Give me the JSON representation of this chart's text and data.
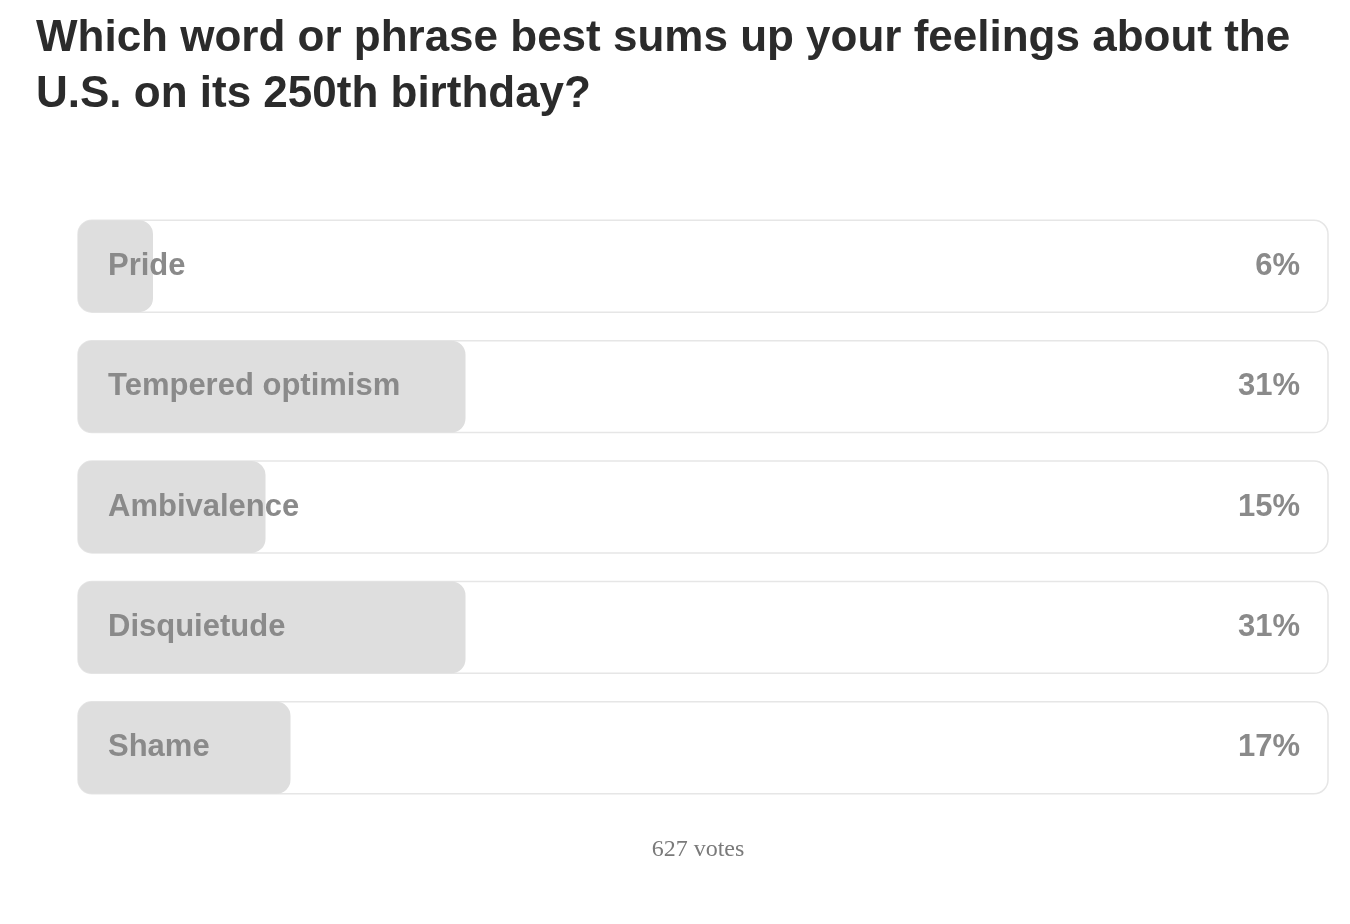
{
  "chart_data": {
    "type": "bar",
    "orientation": "horizontal",
    "title": "Which word or phrase best sums up your feelings about the U.S. on its 250th birthday?",
    "categories": [
      "Pride",
      "Tempered optimism",
      "Ambivalence",
      "Disquietude",
      "Shame"
    ],
    "values": [
      6,
      31,
      15,
      31,
      17
    ],
    "value_labels": [
      "6%",
      "31%",
      "15%",
      "31%",
      "17%"
    ],
    "color": "#dedede",
    "xlim": [
      0,
      100
    ],
    "tick_labels": "y",
    "annotations": [
      "627 votes"
    ]
  }
}
